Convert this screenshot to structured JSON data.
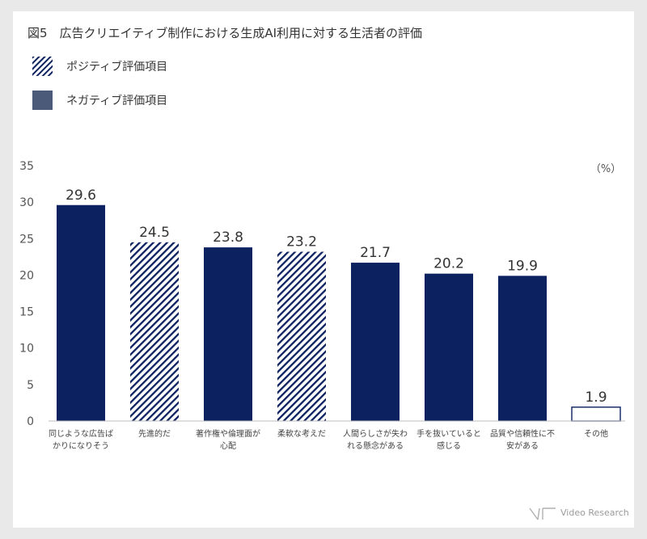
{
  "title": "図5　広告クリエイティブ制作における生成AI利用に対する生活者の評価",
  "legend": [
    {
      "label": "ポジティブ評価項目",
      "pattern": "hatched"
    },
    {
      "label": "ネガティブ評価項目",
      "pattern": "solid"
    }
  ],
  "colors": {
    "navy": "#0c2160",
    "legend_solid": "#4a5a78",
    "axis_text": "#555555"
  },
  "logo_text": "Video Research",
  "chart_data": {
    "type": "bar",
    "unit_label": "（%）",
    "ylim": [
      0,
      35
    ],
    "yticks": [
      "0",
      "5",
      "10",
      "15",
      "20",
      "25",
      "30",
      "35"
    ],
    "grid": false,
    "categories": [
      [
        "同じような広告ば",
        "かりになりそう"
      ],
      [
        "先進的だ"
      ],
      [
        "著作権や倫理面が",
        "心配"
      ],
      [
        "柔軟な考えだ"
      ],
      [
        "人間らしさが失わ",
        "れる懸念がある"
      ],
      [
        "手を抜いていると",
        "感じる"
      ],
      [
        "品質や信頼性に不",
        "安がある"
      ],
      [
        "その他"
      ]
    ],
    "values": [
      29.6,
      24.5,
      23.8,
      23.2,
      21.7,
      20.2,
      19.9,
      1.9
    ],
    "value_labels": [
      "29.6",
      "24.5",
      "23.8",
      "23.2",
      "21.7",
      "20.2",
      "19.9",
      "1.9"
    ],
    "bar_styles": [
      "solid",
      "hatched",
      "solid",
      "hatched",
      "solid",
      "solid",
      "solid",
      "outline"
    ]
  }
}
